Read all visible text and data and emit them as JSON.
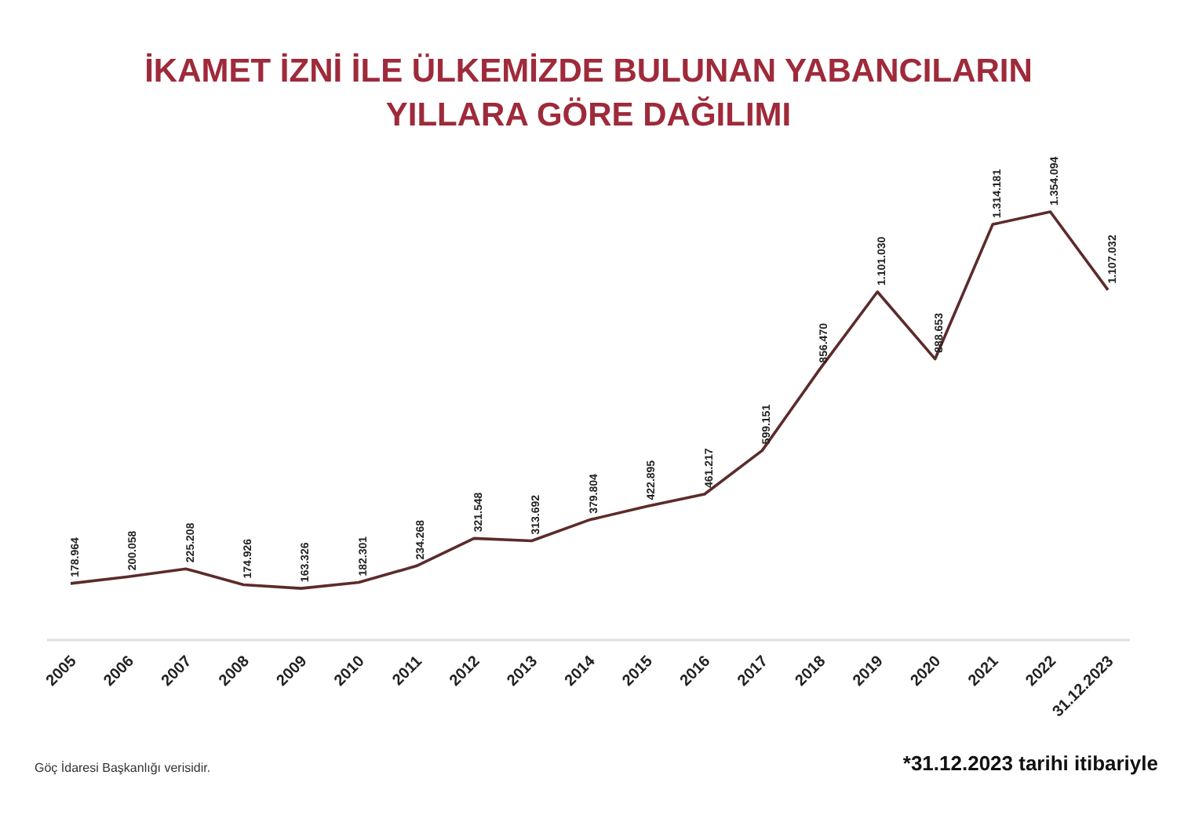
{
  "chart_data": {
    "type": "line",
    "title": "İKAMET İZNİ İLE ÜLKEMİZDE BULUNAN YABANCILARIN\nYILLARA GÖRE DAĞILIMI",
    "categories": [
      "2005",
      "2006",
      "2007",
      "2008",
      "2009",
      "2010",
      "2011",
      "2012",
      "2013",
      "2014",
      "2015",
      "2016",
      "2017",
      "2018",
      "2019",
      "2020",
      "2021",
      "2022",
      "31.12.2023"
    ],
    "series": [
      {
        "color": "#5c2b2b",
        "values": [
          178964,
          200058,
          225208,
          174926,
          163326,
          182301,
          234268,
          321548,
          313692,
          379804,
          422895,
          461217,
          599151,
          856470,
          1101030,
          888653,
          1314181,
          1354094,
          1107032
        ],
        "value_labels": [
          "178.964",
          "200.058",
          "225.208",
          "174.926",
          "163.326",
          "182.301",
          "234.268",
          "321.548",
          "313.692",
          "379.804",
          "422.895",
          "461.217",
          "599.151",
          "856.470",
          "1.101.030",
          "888.653",
          "1.314.181",
          "1.354.094",
          "1.107.032"
        ]
      }
    ],
    "annotations": [
      "Göç İdaresi Başkanlığı verisidir.",
      "*31.12.2023 tarihi itibariyle"
    ],
    "marker": "none",
    "line_style": "solid"
  }
}
